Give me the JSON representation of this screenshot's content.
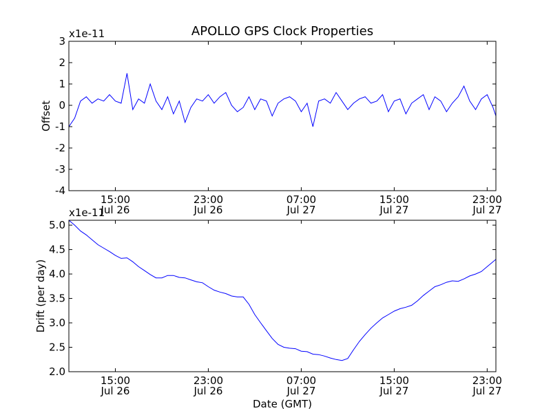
{
  "chart_title": "APOLLO GPS Clock Properties",
  "chart_data": [
    {
      "type": "line",
      "title": "APOLLO GPS Clock Properties",
      "xlabel": "",
      "ylabel": "Offset",
      "y_scale_label": "x1e-11",
      "xlim": [
        11.0,
        47.75
      ],
      "ylim": [
        -4,
        3
      ],
      "y_ticks": [
        {
          "value": -4,
          "label": "-4"
        },
        {
          "value": -3,
          "label": "-3"
        },
        {
          "value": -2,
          "label": "-2"
        },
        {
          "value": -1,
          "label": "-1"
        },
        {
          "value": 0,
          "label": "0"
        },
        {
          "value": 1,
          "label": "1"
        },
        {
          "value": 2,
          "label": "2"
        },
        {
          "value": 3,
          "label": "3"
        }
      ],
      "x_ticks": [
        {
          "value": 15,
          "time": "15:00",
          "date": "Jul 26"
        },
        {
          "value": 23,
          "time": "23:00",
          "date": "Jul 26"
        },
        {
          "value": 31,
          "time": "07:00",
          "date": "Jul 27"
        },
        {
          "value": 39,
          "time": "15:00",
          "date": "Jul 27"
        },
        {
          "value": 47,
          "time": "23:00",
          "date": "Jul 27"
        }
      ],
      "grid": false,
      "color": "#0000ff",
      "series": [
        {
          "x": [
            11.0,
            11.5,
            12.0,
            12.5,
            13.0,
            13.5,
            14.0,
            14.5,
            15.0,
            15.5,
            16.0,
            16.5,
            17.0,
            17.5,
            18.0,
            18.5,
            19.0,
            19.5,
            20.0,
            20.5,
            21.0,
            21.5,
            22.0,
            22.5,
            23.0,
            23.5,
            24.0,
            24.5,
            25.0,
            25.5,
            26.0,
            26.5,
            27.0,
            27.5,
            28.0,
            28.5,
            29.0,
            29.5,
            30.0,
            30.5,
            31.0,
            31.5,
            32.0,
            32.5,
            33.0,
            33.5,
            34.0,
            34.5,
            35.0,
            35.5,
            36.0,
            36.5,
            37.0,
            37.5,
            38.0,
            38.5,
            39.0,
            39.5,
            40.0,
            40.5,
            41.0,
            41.5,
            42.0,
            42.5,
            43.0,
            43.5,
            44.0,
            44.5,
            45.0,
            45.5,
            46.0,
            46.5,
            47.0,
            47.5,
            47.75
          ],
          "y": [
            -1.0,
            -0.6,
            0.2,
            0.4,
            0.1,
            0.3,
            0.2,
            0.5,
            0.2,
            0.1,
            1.5,
            -0.2,
            0.3,
            0.1,
            1.0,
            0.2,
            -0.2,
            0.4,
            -0.4,
            0.2,
            -0.8,
            -0.1,
            0.3,
            0.2,
            0.5,
            0.1,
            0.4,
            0.6,
            0.0,
            -0.3,
            -0.1,
            0.4,
            -0.2,
            0.3,
            0.2,
            -0.5,
            0.1,
            0.3,
            0.4,
            0.2,
            -0.3,
            0.1,
            -1.0,
            0.2,
            0.3,
            0.1,
            0.6,
            0.2,
            -0.2,
            0.1,
            0.3,
            0.4,
            0.1,
            0.2,
            0.5,
            -0.3,
            0.2,
            0.3,
            -0.4,
            0.1,
            0.3,
            0.5,
            -0.2,
            0.4,
            0.2,
            -0.3,
            0.1,
            0.4,
            0.9,
            0.2,
            -0.2,
            0.3,
            0.5,
            -0.1,
            -0.5
          ]
        }
      ]
    },
    {
      "type": "line",
      "xlabel": "Date (GMT)",
      "ylabel": "Drift (per day)",
      "y_scale_label": "x1e-11",
      "xlim": [
        11.0,
        47.75
      ],
      "ylim": [
        2.0,
        5.1
      ],
      "y_ticks": [
        {
          "value": 2.0,
          "label": "2.0"
        },
        {
          "value": 2.5,
          "label": "2.5"
        },
        {
          "value": 3.0,
          "label": "3.0"
        },
        {
          "value": 3.5,
          "label": "3.5"
        },
        {
          "value": 4.0,
          "label": "4.0"
        },
        {
          "value": 4.5,
          "label": "4.5"
        },
        {
          "value": 5.0,
          "label": "5.0"
        }
      ],
      "x_ticks": [
        {
          "value": 15,
          "time": "15:00",
          "date": "Jul 26"
        },
        {
          "value": 23,
          "time": "23:00",
          "date": "Jul 26"
        },
        {
          "value": 31,
          "time": "07:00",
          "date": "Jul 27"
        },
        {
          "value": 39,
          "time": "15:00",
          "date": "Jul 27"
        },
        {
          "value": 47,
          "time": "23:00",
          "date": "Jul 27"
        }
      ],
      "grid": false,
      "color": "#0000ff",
      "series": [
        {
          "x": [
            11.0,
            11.5,
            12.0,
            12.5,
            13.0,
            13.5,
            14.0,
            14.5,
            15.0,
            15.5,
            16.0,
            16.5,
            17.0,
            17.5,
            18.0,
            18.5,
            19.0,
            19.5,
            20.0,
            20.5,
            21.0,
            21.5,
            22.0,
            22.5,
            23.0,
            23.5,
            24.0,
            24.5,
            25.0,
            25.5,
            26.0,
            26.5,
            27.0,
            27.5,
            28.0,
            28.5,
            29.0,
            29.5,
            30.0,
            30.5,
            31.0,
            31.5,
            32.0,
            32.5,
            33.0,
            33.5,
            34.0,
            34.5,
            35.0,
            35.5,
            36.0,
            36.5,
            37.0,
            37.5,
            38.0,
            38.5,
            39.0,
            39.5,
            40.0,
            40.5,
            41.0,
            41.5,
            42.0,
            42.5,
            43.0,
            43.5,
            44.0,
            44.5,
            45.0,
            45.5,
            46.0,
            46.5,
            47.0,
            47.5,
            47.75
          ],
          "y": [
            5.1,
            5.0,
            4.88,
            4.8,
            4.7,
            4.6,
            4.53,
            4.46,
            4.38,
            4.32,
            4.33,
            4.25,
            4.15,
            4.07,
            3.99,
            3.92,
            3.92,
            3.97,
            3.97,
            3.93,
            3.92,
            3.88,
            3.84,
            3.82,
            3.74,
            3.67,
            3.63,
            3.6,
            3.55,
            3.53,
            3.53,
            3.38,
            3.17,
            3.0,
            2.84,
            2.68,
            2.56,
            2.5,
            2.48,
            2.47,
            2.42,
            2.41,
            2.36,
            2.35,
            2.32,
            2.28,
            2.25,
            2.23,
            2.27,
            2.45,
            2.62,
            2.76,
            2.89,
            3.0,
            3.1,
            3.17,
            3.24,
            3.29,
            3.32,
            3.36,
            3.45,
            3.56,
            3.65,
            3.74,
            3.78,
            3.83,
            3.86,
            3.85,
            3.9,
            3.96,
            4.0,
            4.05,
            4.15,
            4.25,
            4.3
          ]
        }
      ]
    }
  ]
}
